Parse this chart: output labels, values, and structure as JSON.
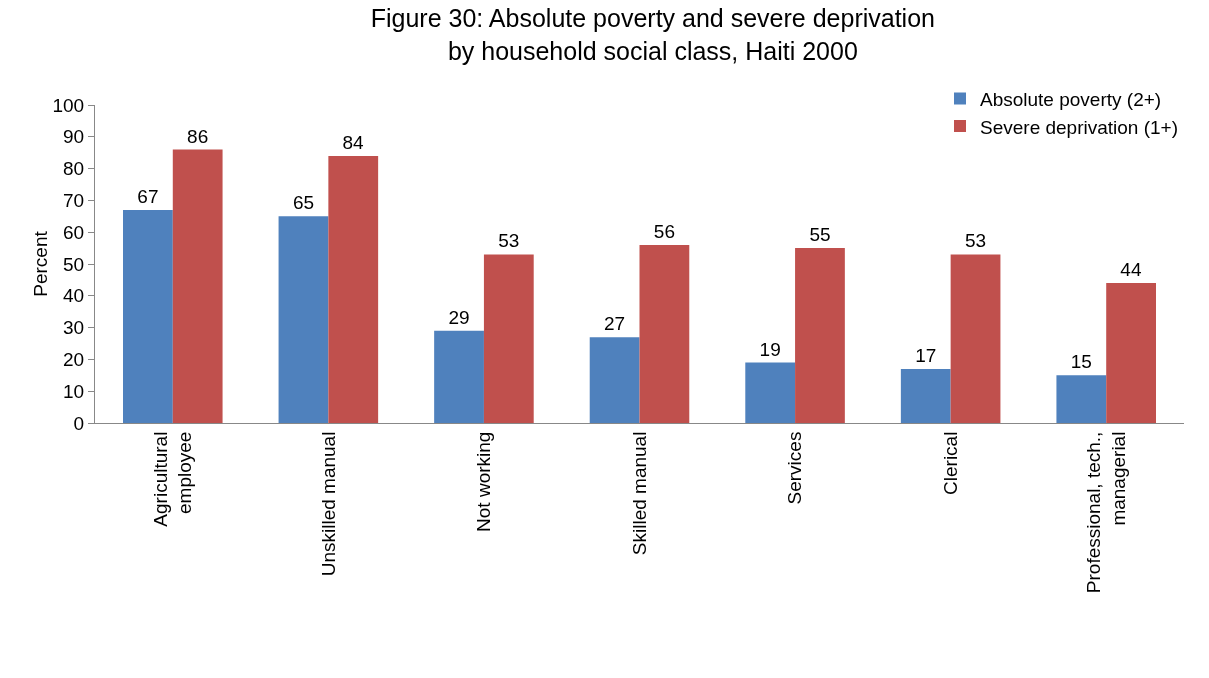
{
  "chart_data": {
    "type": "bar",
    "title": "Figure 30: Absolute poverty and severe deprivation by household social class, Haiti 2000",
    "ylabel": "Percent",
    "categories": [
      "Agricultural employee",
      "Unskilled manual",
      "Not working",
      "Skilled manual",
      "Services",
      "Clerical",
      "Professional, tech., managerial"
    ],
    "series": [
      {
        "name": "Absolute poverty (2+)",
        "color": "#4f81bd",
        "values": [
          67,
          65,
          29,
          27,
          19,
          17,
          15
        ]
      },
      {
        "name": "Severe deprivation (1+)",
        "color": "#c0504d",
        "values": [
          86,
          84,
          53,
          56,
          55,
          53,
          44
        ]
      }
    ],
    "ylim": [
      0,
      100
    ],
    "yticks": [
      0,
      10,
      20,
      30,
      40,
      50,
      60,
      70,
      80,
      90,
      100
    ],
    "data_labels": true,
    "grid": false,
    "legend": "top right"
  }
}
